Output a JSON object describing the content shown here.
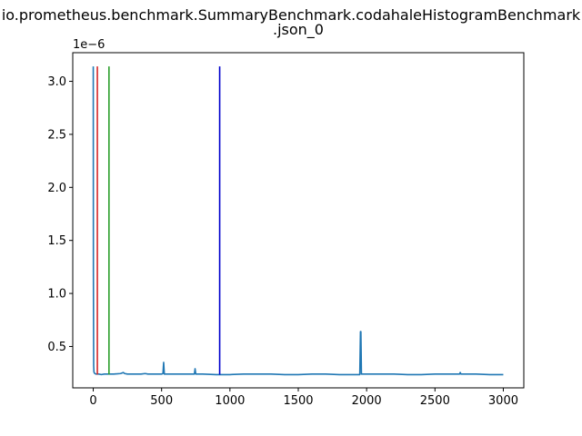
{
  "chart_data": {
    "type": "line",
    "title_line1": "io.prometheus.benchmark.SummaryBenchmark.codahaleHistogramBenchmark",
    "title_line2": ".json_0",
    "xlabel": "",
    "ylabel": "",
    "y_offset_label": "1e−6",
    "xlim": [
      -150,
      3150
    ],
    "ylim": [
      0.11,
      3.27
    ],
    "x_ticks": [
      0,
      500,
      1000,
      1500,
      2000,
      2500,
      3000
    ],
    "x_tick_labels": [
      "0",
      "500",
      "1000",
      "1500",
      "2000",
      "2500",
      "3000"
    ],
    "y_ticks": [
      0.5,
      1.0,
      1.5,
      2.0,
      2.5,
      3.0
    ],
    "y_tick_labels": [
      "0.5",
      "1.0",
      "1.5",
      "2.0",
      "2.5",
      "3.0"
    ],
    "grid": false,
    "series": [
      {
        "color": "#1f77b4",
        "x": [
          0,
          1,
          3,
          5,
          8,
          12,
          20,
          40,
          60,
          80,
          100,
          150,
          200,
          220,
          230,
          250,
          300,
          350,
          380,
          400,
          450,
          500,
          510,
          515,
          520,
          530,
          600,
          700,
          740,
          745,
          750,
          800,
          900,
          1000,
          1100,
          1200,
          1300,
          1400,
          1500,
          1600,
          1700,
          1800,
          1900,
          1950,
          1955,
          1958,
          1962,
          1970,
          2000,
          2100,
          2200,
          2300,
          2400,
          2500,
          2600,
          2680,
          2685,
          2690,
          2700,
          2800,
          2900,
          3000
        ],
        "y": [
          3.14,
          1.2,
          0.32,
          0.26,
          0.25,
          0.245,
          0.24,
          0.24,
          0.235,
          0.24,
          0.24,
          0.24,
          0.245,
          0.255,
          0.245,
          0.24,
          0.24,
          0.24,
          0.245,
          0.24,
          0.24,
          0.24,
          0.245,
          0.35,
          0.24,
          0.24,
          0.24,
          0.24,
          0.24,
          0.29,
          0.24,
          0.24,
          0.235,
          0.235,
          0.24,
          0.24,
          0.24,
          0.235,
          0.235,
          0.24,
          0.24,
          0.235,
          0.235,
          0.235,
          0.64,
          0.64,
          0.24,
          0.24,
          0.24,
          0.24,
          0.24,
          0.235,
          0.235,
          0.24,
          0.24,
          0.24,
          0.255,
          0.24,
          0.24,
          0.24,
          0.235,
          0.235
        ]
      }
    ],
    "vertical_lines": [
      {
        "x": 30,
        "y0": 0.235,
        "y1": 3.14,
        "color": "#d62728"
      },
      {
        "x": 115,
        "y0": 0.235,
        "y1": 3.14,
        "color": "#2ca02c"
      },
      {
        "x": 925,
        "y0": 0.235,
        "y1": 3.14,
        "color": "#0000cc"
      }
    ]
  }
}
